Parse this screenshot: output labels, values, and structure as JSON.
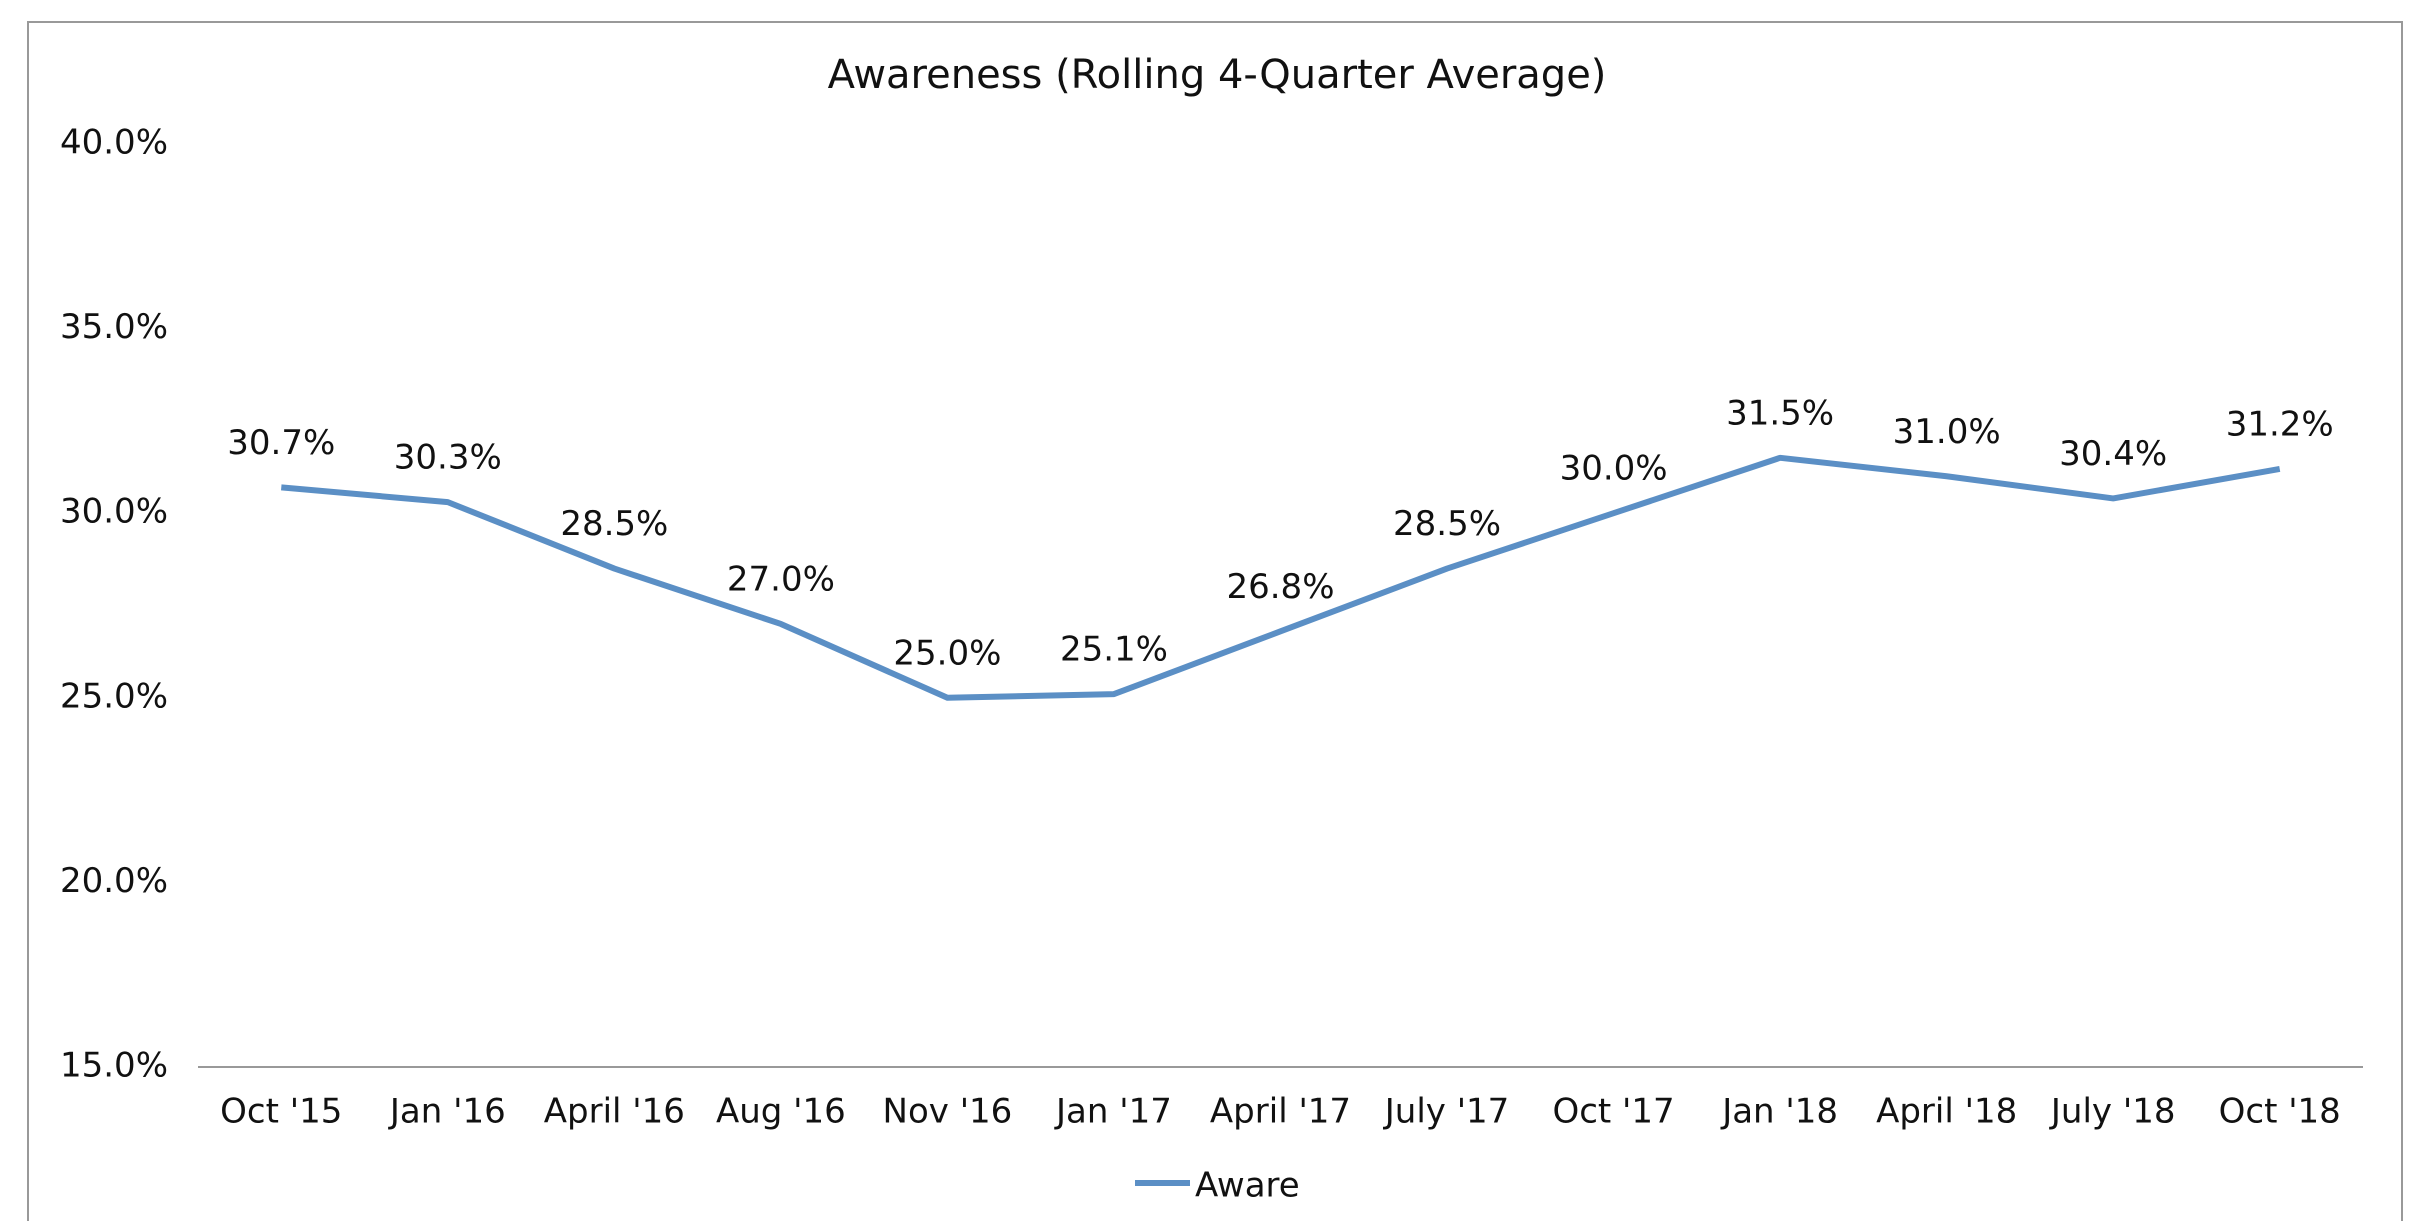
{
  "chart_data": {
    "type": "line",
    "title": "Awareness (Rolling 4-Quarter Average)",
    "categories": [
      "Oct '15",
      "Jan '16",
      "April '16",
      "Aug '16",
      "Nov '16",
      "Jan '17",
      "April '17",
      "July '17",
      "Oct '17",
      "Jan '18",
      "April '18",
      "July '18",
      "Oct '18"
    ],
    "series": [
      {
        "name": "Aware",
        "color": "#5b8fc5",
        "values": [
          30.7,
          30.3,
          28.5,
          27.0,
          25.0,
          25.1,
          26.8,
          28.5,
          30.0,
          31.5,
          31.0,
          30.4,
          31.2
        ],
        "value_labels": [
          "30.7%",
          "30.3%",
          "28.5%",
          "27.0%",
          "25.0%",
          "25.1%",
          "26.8%",
          "28.5%",
          "30.0%",
          "31.5%",
          "31.0%",
          "30.4%",
          "31.2%"
        ]
      }
    ],
    "ylim": [
      15,
      40
    ],
    "yticks": [
      {
        "value": 15,
        "label": "15.0%"
      },
      {
        "value": 20,
        "label": "20.0%"
      },
      {
        "value": 25,
        "label": "25.0%"
      },
      {
        "value": 30,
        "label": "30.0%"
      },
      {
        "value": 35,
        "label": "35.0%"
      },
      {
        "value": 40,
        "label": "40.0%"
      }
    ],
    "grid": false,
    "legend": "bottom"
  }
}
